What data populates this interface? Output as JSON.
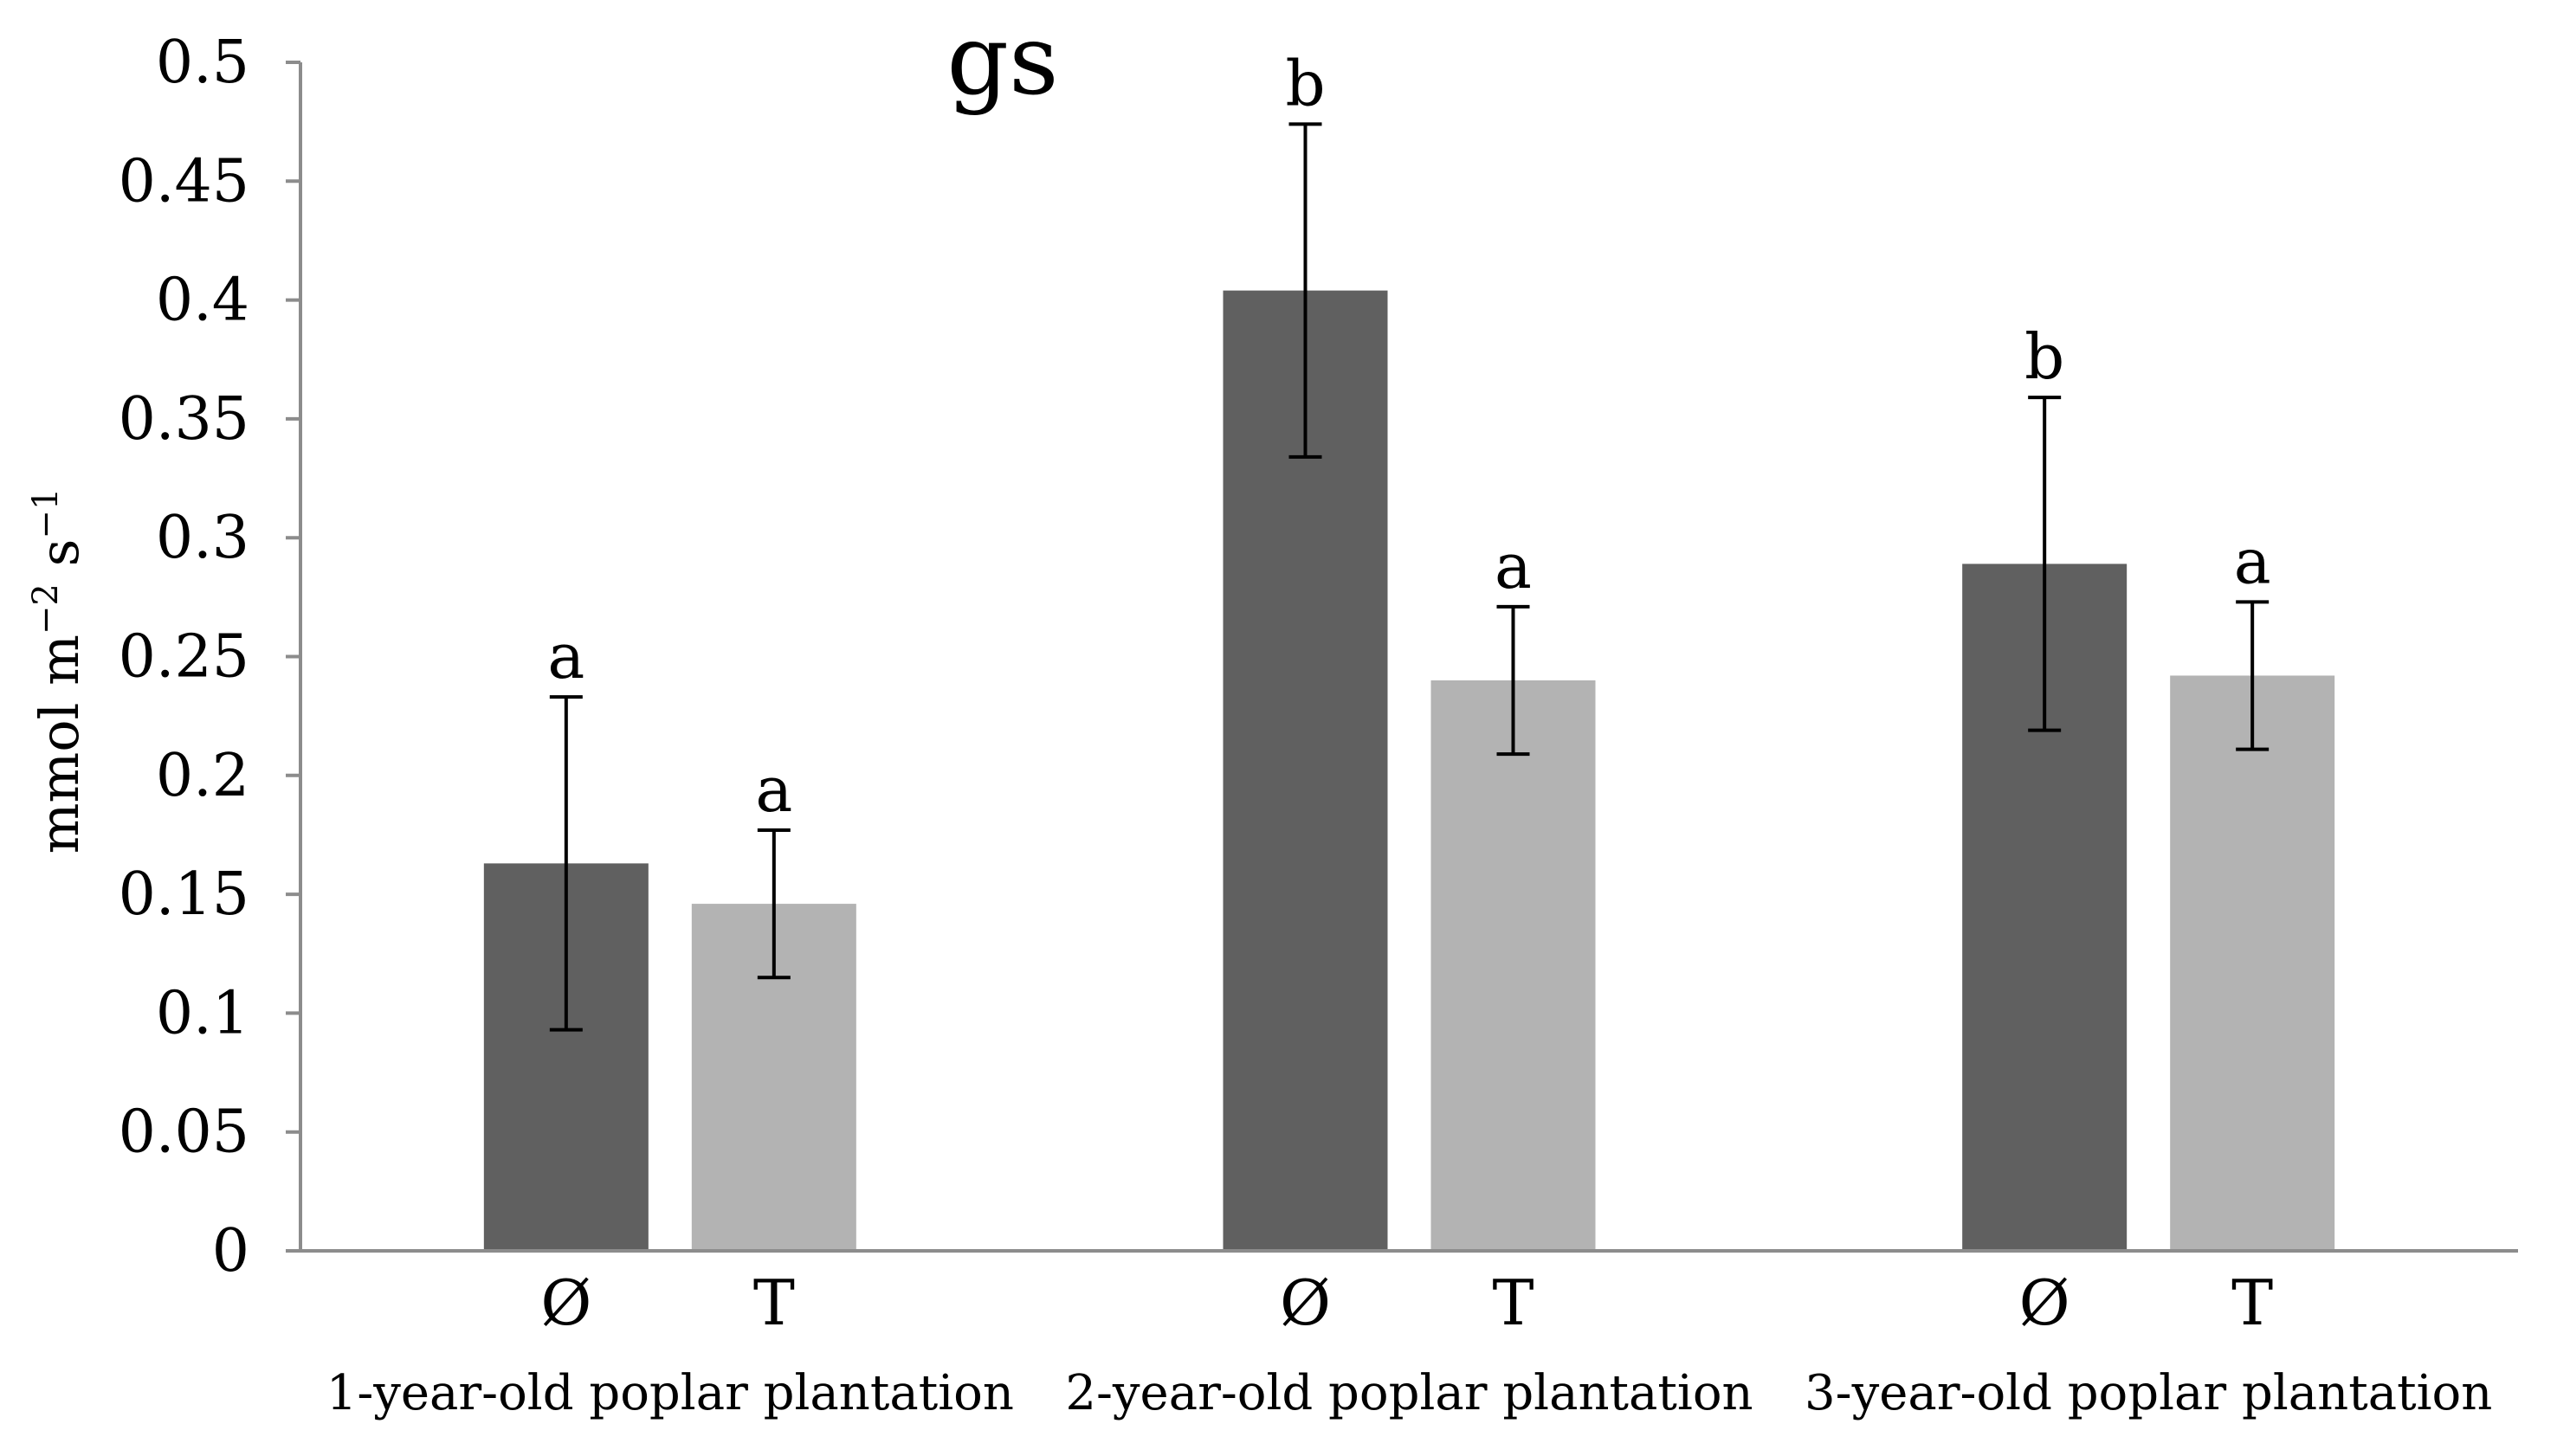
{
  "chart_data": {
    "type": "bar",
    "title": "gs",
    "ylabel": {
      "main": "mmol m",
      "exp1": "−2",
      "mid": " s",
      "exp2": "−1"
    },
    "xlabel": "",
    "ylim": [
      0,
      0.5
    ],
    "y_ticks": [
      "0",
      "0.05",
      "0.1",
      "0.15",
      "0.2",
      "0.25",
      "0.3",
      "0.35",
      "0.4",
      "0.45",
      "0.5"
    ],
    "grid": false,
    "legend": "none",
    "groups": [
      {
        "name": "1-year-old poplar plantation",
        "bars": [
          {
            "label": "Ø",
            "value": 0.163,
            "error": 0.07,
            "letter": "a",
            "color": "#606060"
          },
          {
            "label": "T",
            "value": 0.146,
            "error": 0.031,
            "letter": "a",
            "color": "#b3b3b3"
          }
        ]
      },
      {
        "name": "2-year-old poplar plantation",
        "bars": [
          {
            "label": "Ø",
            "value": 0.404,
            "error": 0.07,
            "letter": "b",
            "color": "#606060"
          },
          {
            "label": "T",
            "value": 0.24,
            "error": 0.031,
            "letter": "a",
            "color": "#b3b3b3"
          }
        ]
      },
      {
        "name": "3-year-old poplar plantation",
        "bars": [
          {
            "label": "Ø",
            "value": 0.289,
            "error": 0.07,
            "letter": "b",
            "color": "#606060"
          },
          {
            "label": "T",
            "value": 0.242,
            "error": 0.031,
            "letter": "a",
            "color": "#b3b3b3"
          }
        ]
      }
    ]
  }
}
